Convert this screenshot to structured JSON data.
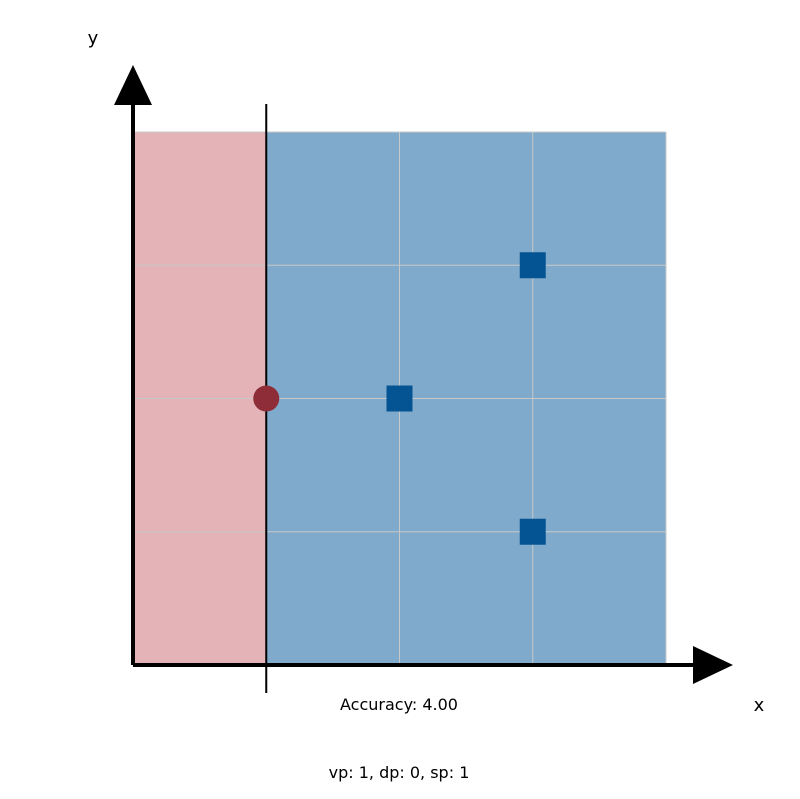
{
  "chart_data": {
    "type": "scatter",
    "xlabel": "x",
    "ylabel": "y",
    "xlim": [
      0,
      4
    ],
    "ylim": [
      0,
      4
    ],
    "grid": true,
    "decision_boundary": {
      "x": 1
    },
    "regions": [
      {
        "name": "left",
        "x_range": [
          0,
          1
        ],
        "color": "#e3b3b7"
      },
      {
        "name": "right",
        "x_range": [
          1,
          4
        ],
        "color": "#80aacb"
      }
    ],
    "series": [
      {
        "marker": "circle",
        "color": "#8e2c38",
        "points": [
          [
            1,
            2
          ]
        ]
      },
      {
        "marker": "square",
        "color": "#045493",
        "points": [
          [
            2,
            2
          ],
          [
            3,
            3
          ],
          [
            3,
            1
          ]
        ]
      }
    ],
    "annotations": {
      "accuracy": "Accuracy: 4.00",
      "footer": "vp: 1, dp: 0, sp: 1"
    }
  },
  "colors": {
    "grid": "#c8c8c8",
    "axis": "#000000",
    "boundary": "#000000"
  }
}
